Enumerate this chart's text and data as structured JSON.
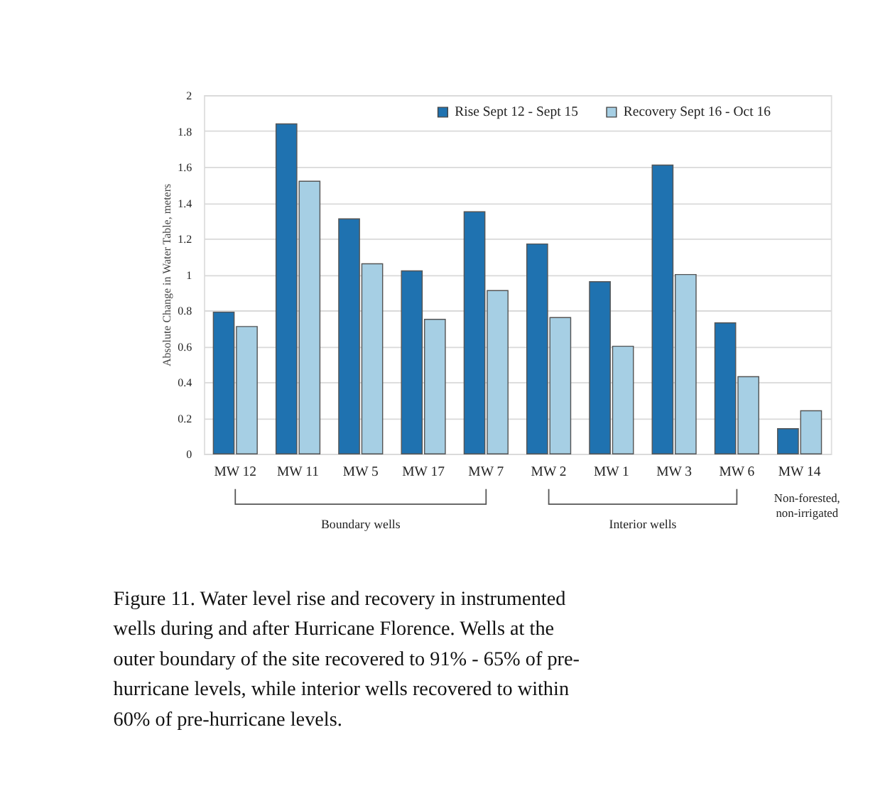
{
  "chart_data": {
    "type": "bar",
    "ylabel": "Absolute Change in Water Table, meters",
    "categories": [
      "MW 12",
      "MW 11",
      "MW 5",
      "MW 17",
      "MW 7",
      "MW 2",
      "MW 1",
      "MW 3",
      "MW 6",
      "MW 14"
    ],
    "series": [
      {
        "name": "Rise Sept 12 - Sept 15",
        "color": "#1f72b0",
        "values": [
          0.79,
          1.84,
          1.31,
          1.02,
          1.35,
          1.17,
          0.96,
          1.61,
          0.73,
          0.14
        ]
      },
      {
        "name": "Recovery Sept 16 - Oct 16",
        "color": "#a6cfe4",
        "values": [
          0.71,
          1.52,
          1.06,
          0.75,
          0.91,
          0.76,
          0.6,
          1.0,
          0.43,
          0.24
        ]
      }
    ],
    "ylim": [
      0,
      2
    ],
    "yticks": [
      0,
      0.2,
      0.4,
      0.6,
      0.8,
      1,
      1.2,
      1.4,
      1.6,
      1.8,
      2
    ],
    "grid": "y",
    "legend": "top",
    "annotations": [
      "Boundary wells",
      "Interior wells",
      "Non-forested, non-irrigated",
      "Figure 11. Water level rise and recovery in instrumented wells during and after Hurricane Florence. Wells at the outer boundary of the site recovered to 91% - 65% of pre-hurricane levels, while interior wells recovered to within 60% of pre-hurricane levels."
    ]
  }
}
